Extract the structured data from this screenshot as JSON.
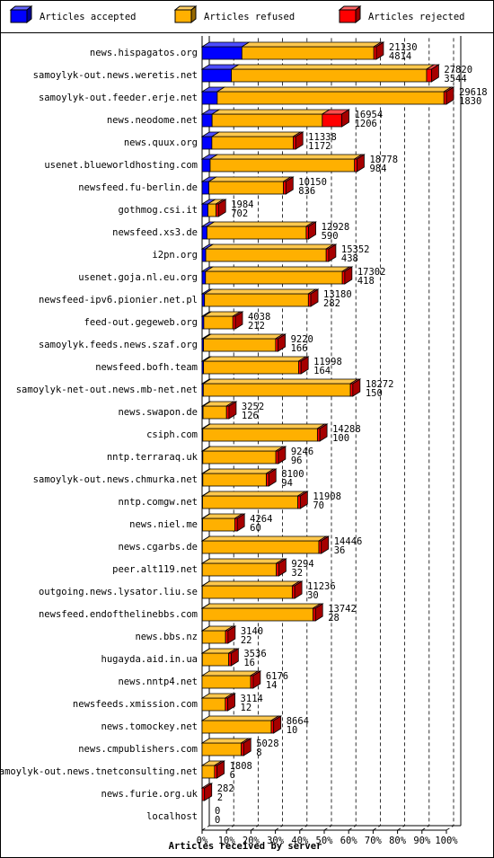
{
  "chart_data": {
    "type": "bar3d-stacked-horizontal",
    "xlabel": "Articles received by server",
    "categories": [
      "news.hispagatos.org",
      "samoylyk-out.news.weretis.net",
      "samoylyk-out.feeder.erje.net",
      "news.neodome.net",
      "news.quux.org",
      "usenet.blueworldhosting.com",
      "newsfeed.fu-berlin.de",
      "gothmog.csi.it",
      "newsfeed.xs3.de",
      "i2pn.org",
      "usenet.goja.nl.eu.org",
      "newsfeed-ipv6.pionier.net.pl",
      "feed-out.gegeweb.org",
      "samoylyk.feeds.news.szaf.org",
      "newsfeed.bofh.team",
      "samoylyk-net-out.news.mb-net.net",
      "news.swapon.de",
      "csiph.com",
      "nntp.terraraq.uk",
      "samoylyk-out.news.chmurka.net",
      "nntp.comgw.net",
      "news.niel.me",
      "news.cgarbs.de",
      "peer.alt119.net",
      "outgoing.news.lysator.liu.se",
      "newsfeed.endofthelinebbs.com",
      "news.bbs.nz",
      "hugayda.aid.in.ua",
      "news.nntp4.net",
      "newsfeeds.xmission.com",
      "news.tomockey.net",
      "news.cmpublishers.com",
      "samoylyk-out.news.tnetconsulting.net",
      "news.furie.org.uk",
      "localhost"
    ],
    "series": [
      {
        "name": "Articles accepted",
        "color": "#0000ff",
        "values": [
          16.3,
          12.0,
          6.2,
          4.1,
          4.0,
          3.3,
          2.8,
          2.4,
          2.0,
          1.5,
          1.4,
          1.0,
          0.7,
          0.6,
          0.6,
          0.5,
          0.4,
          0.3,
          0.3,
          0.3,
          0.2,
          0.2,
          0.1,
          0.1,
          0.1,
          0.1,
          0.1,
          0.1,
          0,
          0,
          0,
          0,
          0,
          0,
          0
        ]
      },
      {
        "name": "Articles refused",
        "color": "#ffb000",
        "values": [
          54.0,
          79.9,
          92.8,
          45.1,
          33.3,
          59.1,
          30.5,
          3.3,
          40.6,
          49.3,
          56.0,
          42.5,
          11.9,
          29.5,
          38.9,
          60.2,
          9.6,
          46.9,
          29.9,
          26.0,
          39.0,
          13.2,
          47.7,
          30.3,
          36.8,
          45.3,
          9.5,
          10.8,
          19.9,
          9.5,
          28.3,
          16.0,
          5.1,
          0,
          0
        ]
      },
      {
        "name": "Articles rejected",
        "color": "#ff0000",
        "values": [
          1,
          2,
          1,
          8,
          1,
          1,
          1,
          1,
          1,
          1,
          1,
          1,
          1,
          1,
          1,
          1,
          1,
          1,
          1,
          1,
          1,
          1,
          1,
          1,
          1,
          1,
          1,
          1,
          1,
          1,
          1,
          1,
          1,
          1,
          0
        ]
      }
    ],
    "counts_total": [
      21130,
      27820,
      29618,
      16954,
      11338,
      18778,
      10150,
      1984,
      12928,
      15352,
      17302,
      13180,
      4038,
      9220,
      11998,
      18272,
      3252,
      14288,
      9246,
      8100,
      11908,
      4264,
      14446,
      9294,
      11236,
      13742,
      3140,
      3536,
      6176,
      3114,
      8664,
      5028,
      1808,
      282,
      0
    ],
    "counts_accepted": [
      4814,
      3544,
      1830,
      1206,
      1172,
      984,
      836,
      702,
      590,
      438,
      418,
      282,
      212,
      166,
      164,
      150,
      126,
      100,
      96,
      94,
      70,
      60,
      36,
      32,
      30,
      28,
      22,
      16,
      14,
      12,
      10,
      8,
      6,
      2,
      0
    ],
    "xlim": [
      0,
      100
    ],
    "xticks": [
      {
        "value": 0,
        "label": "0%"
      },
      {
        "value": 10,
        "label": "10%"
      },
      {
        "value": 20,
        "label": "20%"
      },
      {
        "value": 30,
        "label": "30%"
      },
      {
        "value": 40,
        "label": "40%"
      },
      {
        "value": 50,
        "label": "50%"
      },
      {
        "value": 60,
        "label": "60%"
      },
      {
        "value": 70,
        "label": "70%"
      },
      {
        "value": 80,
        "label": "80%"
      },
      {
        "value": 90,
        "label": "90%"
      },
      {
        "value": 100,
        "label": "100%"
      }
    ],
    "grid": true
  }
}
